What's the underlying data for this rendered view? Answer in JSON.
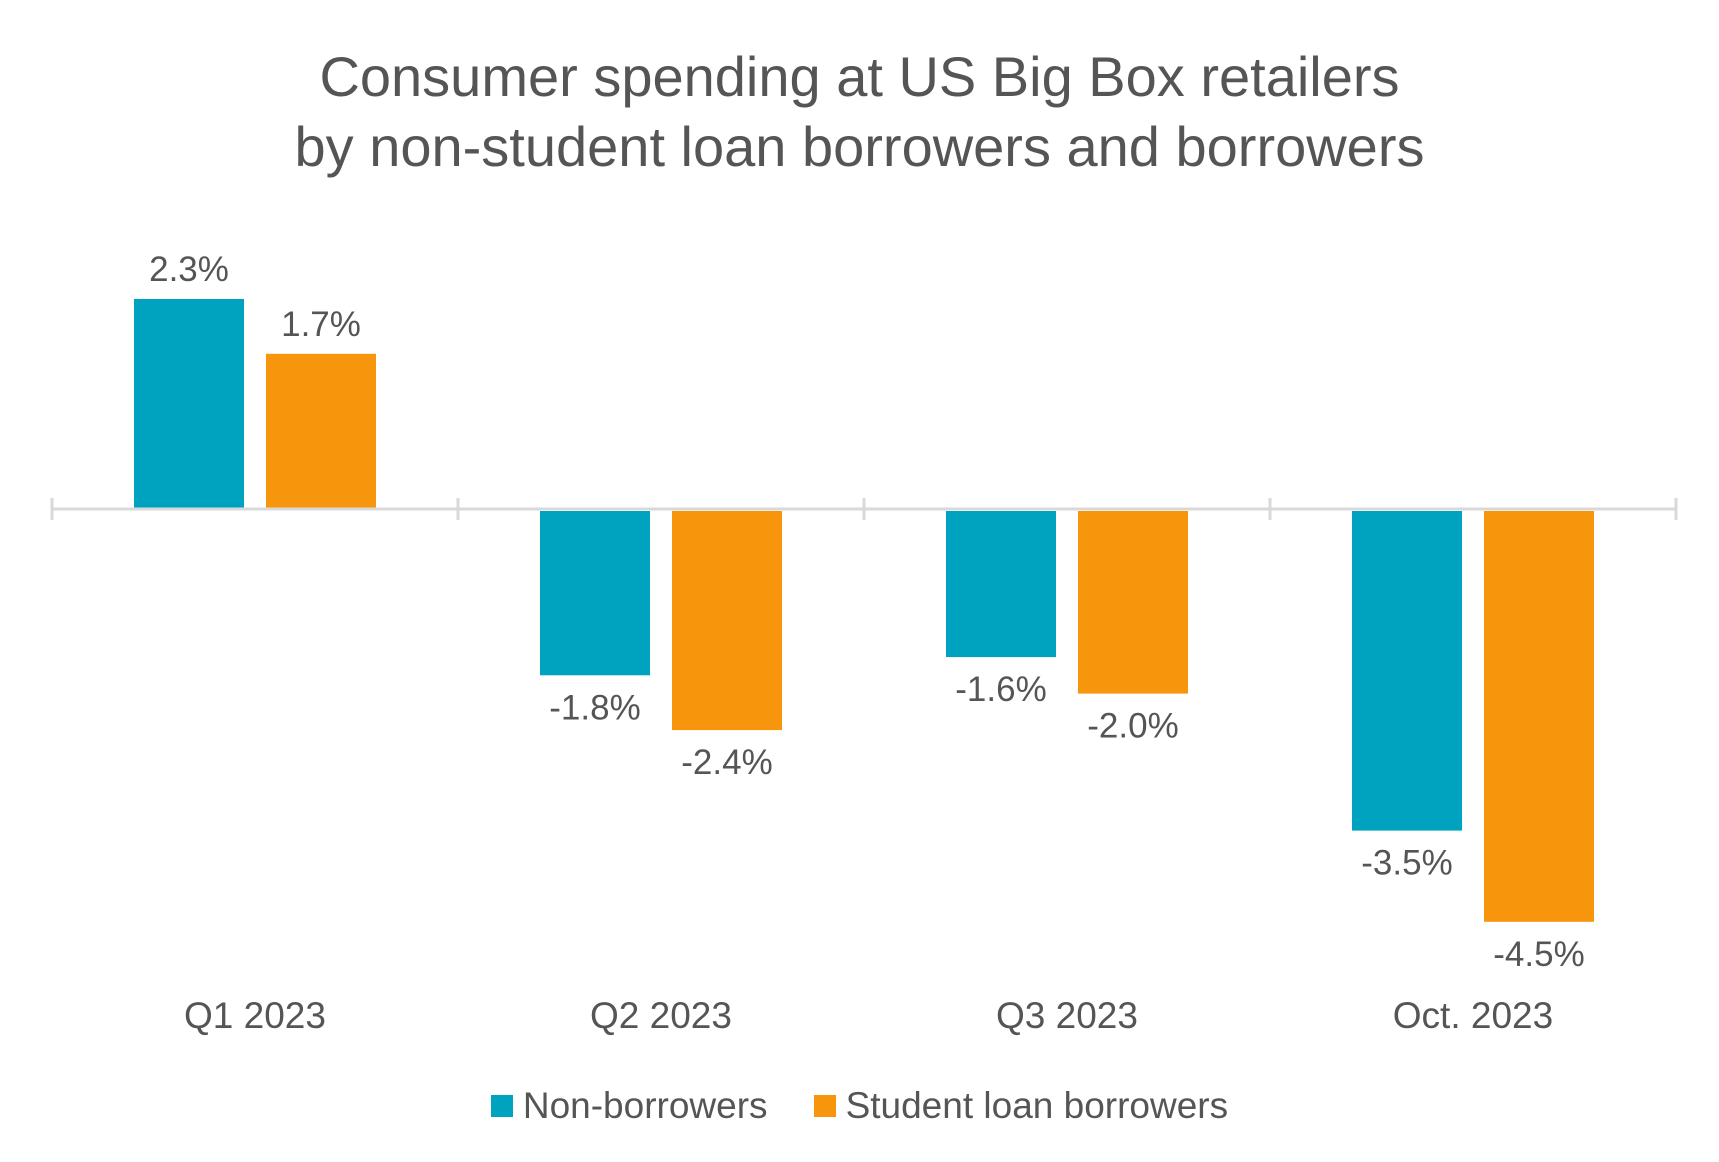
{
  "chart_data": {
    "type": "bar",
    "title_lines": [
      "Consumer spending at US Big Box retailers",
      "by non-student loan borrowers and borrowers"
    ],
    "categories": [
      "Q1 2023",
      "Q2 2023",
      "Q3 2023",
      "Oct. 2023"
    ],
    "series": [
      {
        "name": "Non-borrowers",
        "color": "#00A3BF",
        "values": [
          2.3,
          -1.8,
          -1.6,
          -3.5
        ],
        "labels": [
          "2.3%",
          "-1.8%",
          "-1.6%",
          "-3.5%"
        ]
      },
      {
        "name": "Student loan borrowers",
        "color": "#F7960D",
        "values": [
          1.7,
          -2.4,
          -2.0,
          -4.5
        ],
        "labels": [
          "1.7%",
          "-2.4%",
          "-2.0%",
          "-4.5%"
        ]
      }
    ],
    "ylim": [
      -5.5,
      2.8
    ],
    "grid": false,
    "legend_position": "bottom-center",
    "axis_color": "#D9D9D9",
    "label_color": "#555555"
  }
}
